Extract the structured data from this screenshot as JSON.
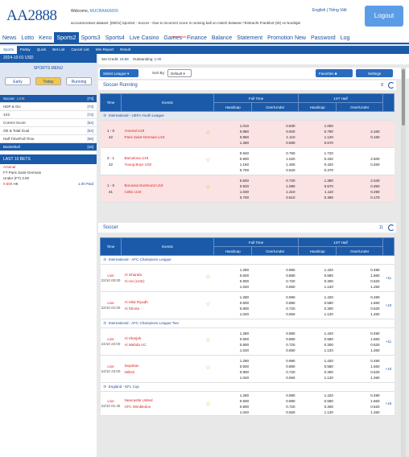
{
  "header": {
    "logo": "AA2888",
    "welcome_label": "Welcome,",
    "username": "MUCBAA66000",
    "marquee": "[06/01] Sports3 - Soccer - Due to incorrect score in running ball on match between *Eintracht Frankfurt (W) vs Nordsjæ",
    "ticker_prefix": "accountcontact dataset",
    "lang_en": "English",
    "lang_vn": "Tiếng Việt",
    "logout": "Logout"
  },
  "nav": {
    "items": [
      "News",
      "Lotto",
      "Keno",
      "Sports2",
      "Sports3",
      "Sports4",
      "Live Casino",
      "Games",
      "Finance",
      "Balance",
      "Statement",
      "Promotion New",
      "Password",
      "Log"
    ],
    "games_badge": "New Arrival",
    "active": "Sports2"
  },
  "subnav": {
    "items": [
      "Sports",
      "Parlay",
      "Quick",
      "Bet List",
      "Cancel List",
      "Win Report",
      "Result"
    ]
  },
  "sidebar": {
    "date_currency": "2024-10-01 USD",
    "menu_title": "SPORTS MENU",
    "tabs": [
      "Early",
      "Today",
      "Running"
    ],
    "sports": [
      {
        "name": "Soccer",
        "tag": "LIVE",
        "count": "[73]"
      },
      {
        "name": "HDP & OU",
        "count": "[73]"
      },
      {
        "name": "1X2",
        "count": "[72]"
      },
      {
        "name": "Correct Score",
        "count": "[64]"
      },
      {
        "name": "OE & Total Goal",
        "count": "[64]"
      },
      {
        "name": "Half Time/Full Time",
        "count": "[58]"
      },
      {
        "name": "Basketball",
        "count": "[16]"
      }
    ],
    "last_bets_title": "LAST 10 BETS",
    "bet": {
      "team": "Arsenal",
      "match": "FT Paris Saint-Germain",
      "line": "Under (FT) 3.00",
      "odds": "0.500",
      "tag": "HK",
      "amount": "1.00 Paid"
    }
  },
  "main": {
    "credit_label": "Set Credit:",
    "credit_value": "18.88",
    "outstanding_label": "Outstanding:",
    "outstanding_value": "1.00",
    "select_league": "Select League",
    "sort_label": "Sort By:",
    "sort_value": "Default",
    "favorites": "Favorites",
    "settings": "Settings",
    "running": {
      "title": "Soccer  Running",
      "count": "8",
      "headers": {
        "time": "Time",
        "events": "Events",
        "ft": "Full Time",
        "half": "1ST Half",
        "hdp": "Handicap",
        "ou": "Over/Under"
      },
      "league": "International - UEFA Youth League",
      "matches": [
        {
          "score": "1 - 0",
          "min": "42",
          "home": "Arsenal U19",
          "away": "Paris Saint-Germain U19",
          "ft_hdp": [
            "1.010",
            "0.880",
            "0.860",
            "1.350"
          ],
          "ft_ou": [
            "0.830",
            "0.920",
            "1.110",
            "0.690"
          ],
          "h_hdp": [
            "1.050",
            "0.790",
            "1.120",
            "0.670"
          ],
          "h_ou": [
            "4.160",
            "0.160",
            "",
            ""
          ]
        },
        {
          "score": "2 - 1",
          "min": "42",
          "home": "Barcelona U19",
          "away": "Young Boys U19",
          "ft_hdp": [
            "0.940",
            "0.900",
            "1.160",
            "0.700"
          ],
          "ft_ou": [
            "0.760",
            "1.020",
            "1.460",
            "0.520"
          ],
          "h_hdp": [
            "1.720",
            "0.420",
            "0.420",
            "0.370"
          ],
          "h_ou": [
            "2.500",
            "0.260",
            "",
            ""
          ]
        },
        {
          "score": "1 - 0",
          "min": "41",
          "home": "Borussia Dortmund U19",
          "away": "Celtic U19",
          "ft_hdp": [
            "0.840",
            "0.920",
            "1.030",
            "0.700"
          ],
          "ft_ou": [
            "0.720",
            "1.080",
            "1.310",
            "0.610"
          ],
          "h_hdp": [
            "1.380",
            "0.570",
            "1.110",
            "0.390"
          ],
          "h_ou": [
            "2.040",
            "0.350",
            "0.290",
            "0.170"
          ]
        }
      ]
    },
    "soccer": {
      "title": "Soccer",
      "count": "11",
      "headers": {
        "time": "Time",
        "events": "Events",
        "ft": "Full Time",
        "half": "1ST Half",
        "hdp": "Handicap",
        "ou": "Over/Under"
      },
      "leagues": [
        {
          "name": "International - AFC Champions League",
          "matches": [
            {
              "status": "Live",
              "time": "22/10 00:00",
              "home": "Al Gharafa",
              "away": "Al Ain (UAE)",
              "more": "+11"
            },
            {
              "status": "Live",
              "time": "22/10 01:00",
              "home": "Al Hilal Riyadh",
              "away": "Al Shorta",
              "more": "+10"
            }
          ]
        },
        {
          "name": "International - AFC Champions League Two",
          "matches": [
            {
              "status": "Live",
              "time": "24/10 23:00",
              "home": "Al Sharjah",
              "away": "Al Wahda UC",
              "more": "+11"
            },
            {
              "status": "Live",
              "time": "24/10 23:00",
              "home": "Sepahan",
              "away": "Istiklol",
              "more": "+10"
            }
          ]
        },
        {
          "name": "England - EFL Cup",
          "matches": [
            {
              "status": "Live",
              "time": "22/10 01:45",
              "home": "Newcastle United",
              "away": "AFC Wimbledon",
              "more": "+19"
            }
          ]
        }
      ],
      "odds_rows": [
        [
          "1.280",
          "0.990",
          "1.420",
          "0.490"
        ],
        [
          "0.600",
          "0.880",
          "0.580",
          "1.660"
        ],
        [
          "0.800",
          "0.720",
          "0.300",
          "0.620"
        ],
        [
          "1.040",
          "0.650",
          "1.120",
          "1.260"
        ]
      ]
    }
  }
}
